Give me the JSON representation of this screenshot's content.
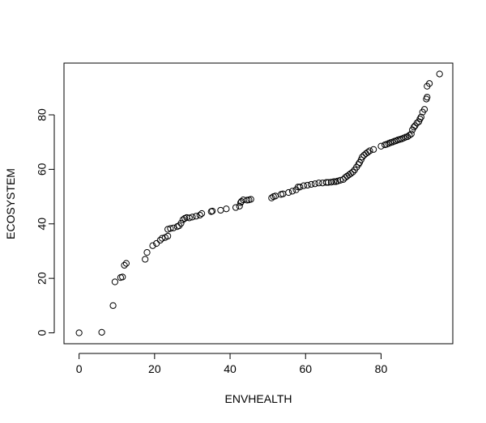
{
  "chart_data": {
    "type": "scatter",
    "title": "",
    "xlabel": "ENVHEALTH",
    "ylabel": "ECOSYSTEM",
    "xlim": [
      -4,
      99
    ],
    "ylim": [
      -4,
      99
    ],
    "xticks": [
      0,
      20,
      40,
      60,
      80
    ],
    "yticks": [
      0,
      20,
      40,
      60,
      80
    ],
    "grid": false,
    "legend": "none",
    "marker": "open-circle",
    "point_color": "#000000",
    "points": [
      {
        "x": 0.0,
        "y": 0.0
      },
      {
        "x": 6.0,
        "y": 0.2
      },
      {
        "x": 9.0,
        "y": 10.0
      },
      {
        "x": 9.5,
        "y": 18.7
      },
      {
        "x": 11.0,
        "y": 20.3
      },
      {
        "x": 11.5,
        "y": 20.5
      },
      {
        "x": 12.0,
        "y": 24.8
      },
      {
        "x": 12.5,
        "y": 25.5
      },
      {
        "x": 17.5,
        "y": 27.0
      },
      {
        "x": 18.0,
        "y": 29.5
      },
      {
        "x": 19.5,
        "y": 32.0
      },
      {
        "x": 20.5,
        "y": 32.8
      },
      {
        "x": 21.5,
        "y": 34.0
      },
      {
        "x": 22.0,
        "y": 34.7
      },
      {
        "x": 22.8,
        "y": 35.0
      },
      {
        "x": 23.5,
        "y": 35.5
      },
      {
        "x": 23.5,
        "y": 38.0
      },
      {
        "x": 24.2,
        "y": 38.3
      },
      {
        "x": 25.0,
        "y": 38.5
      },
      {
        "x": 26.0,
        "y": 39.0
      },
      {
        "x": 26.5,
        "y": 39.3
      },
      {
        "x": 27.0,
        "y": 40.2
      },
      {
        "x": 27.5,
        "y": 41.5
      },
      {
        "x": 28.0,
        "y": 42.0
      },
      {
        "x": 28.5,
        "y": 42.3
      },
      {
        "x": 29.2,
        "y": 42.2
      },
      {
        "x": 30.0,
        "y": 42.5
      },
      {
        "x": 31.0,
        "y": 42.8
      },
      {
        "x": 32.0,
        "y": 43.2
      },
      {
        "x": 32.5,
        "y": 43.8
      },
      {
        "x": 35.0,
        "y": 44.5
      },
      {
        "x": 35.3,
        "y": 44.7
      },
      {
        "x": 37.5,
        "y": 45.0
      },
      {
        "x": 39.0,
        "y": 45.5
      },
      {
        "x": 41.5,
        "y": 46.0
      },
      {
        "x": 42.5,
        "y": 46.5
      },
      {
        "x": 42.8,
        "y": 47.8
      },
      {
        "x": 43.0,
        "y": 48.2
      },
      {
        "x": 43.5,
        "y": 48.8
      },
      {
        "x": 44.5,
        "y": 48.7
      },
      {
        "x": 45.0,
        "y": 48.8
      },
      {
        "x": 45.5,
        "y": 49.0
      },
      {
        "x": 51.0,
        "y": 49.5
      },
      {
        "x": 51.5,
        "y": 50.0
      },
      {
        "x": 52.0,
        "y": 50.2
      },
      {
        "x": 53.5,
        "y": 50.8
      },
      {
        "x": 54.0,
        "y": 51.0
      },
      {
        "x": 55.5,
        "y": 51.5
      },
      {
        "x": 56.5,
        "y": 52.0
      },
      {
        "x": 57.5,
        "y": 52.5
      },
      {
        "x": 58.0,
        "y": 53.5
      },
      {
        "x": 58.5,
        "y": 53.5
      },
      {
        "x": 59.5,
        "y": 54.0
      },
      {
        "x": 60.5,
        "y": 54.2
      },
      {
        "x": 61.5,
        "y": 54.5
      },
      {
        "x": 62.5,
        "y": 54.7
      },
      {
        "x": 63.5,
        "y": 55.0
      },
      {
        "x": 64.5,
        "y": 55.0
      },
      {
        "x": 65.5,
        "y": 55.2
      },
      {
        "x": 66.0,
        "y": 55.2
      },
      {
        "x": 66.8,
        "y": 55.3
      },
      {
        "x": 67.5,
        "y": 55.5
      },
      {
        "x": 68.0,
        "y": 55.5
      },
      {
        "x": 68.5,
        "y": 55.7
      },
      {
        "x": 69.2,
        "y": 56.0
      },
      {
        "x": 70.0,
        "y": 56.3
      },
      {
        "x": 70.5,
        "y": 57.0
      },
      {
        "x": 71.0,
        "y": 57.5
      },
      {
        "x": 71.5,
        "y": 58.0
      },
      {
        "x": 72.0,
        "y": 58.5
      },
      {
        "x": 72.5,
        "y": 59.0
      },
      {
        "x": 73.0,
        "y": 59.8
      },
      {
        "x": 73.5,
        "y": 60.8
      },
      {
        "x": 74.0,
        "y": 61.8
      },
      {
        "x": 74.3,
        "y": 62.5
      },
      {
        "x": 74.7,
        "y": 63.5
      },
      {
        "x": 75.0,
        "y": 64.5
      },
      {
        "x": 75.5,
        "y": 65.2
      },
      {
        "x": 76.0,
        "y": 65.8
      },
      {
        "x": 76.5,
        "y": 66.3
      },
      {
        "x": 77.0,
        "y": 66.8
      },
      {
        "x": 78.0,
        "y": 67.3
      },
      {
        "x": 80.0,
        "y": 68.5
      },
      {
        "x": 81.0,
        "y": 69.0
      },
      {
        "x": 81.5,
        "y": 69.2
      },
      {
        "x": 82.0,
        "y": 69.5
      },
      {
        "x": 82.5,
        "y": 69.8
      },
      {
        "x": 83.0,
        "y": 70.0
      },
      {
        "x": 83.5,
        "y": 70.3
      },
      {
        "x": 84.0,
        "y": 70.5
      },
      {
        "x": 84.5,
        "y": 70.8
      },
      {
        "x": 85.0,
        "y": 71.0
      },
      {
        "x": 85.5,
        "y": 71.2
      },
      {
        "x": 86.0,
        "y": 71.5
      },
      {
        "x": 86.5,
        "y": 71.8
      },
      {
        "x": 87.0,
        "y": 72.0
      },
      {
        "x": 87.5,
        "y": 72.5
      },
      {
        "x": 88.0,
        "y": 73.0
      },
      {
        "x": 88.3,
        "y": 74.5
      },
      {
        "x": 88.7,
        "y": 75.5
      },
      {
        "x": 89.0,
        "y": 76.0
      },
      {
        "x": 89.5,
        "y": 77.0
      },
      {
        "x": 90.0,
        "y": 77.5
      },
      {
        "x": 90.3,
        "y": 78.5
      },
      {
        "x": 90.6,
        "y": 79.2
      },
      {
        "x": 91.0,
        "y": 81.0
      },
      {
        "x": 91.5,
        "y": 82.0
      },
      {
        "x": 92.0,
        "y": 85.8
      },
      {
        "x": 92.2,
        "y": 86.5
      },
      {
        "x": 92.2,
        "y": 90.5
      },
      {
        "x": 92.8,
        "y": 91.5
      },
      {
        "x": 95.5,
        "y": 95.0
      }
    ]
  }
}
